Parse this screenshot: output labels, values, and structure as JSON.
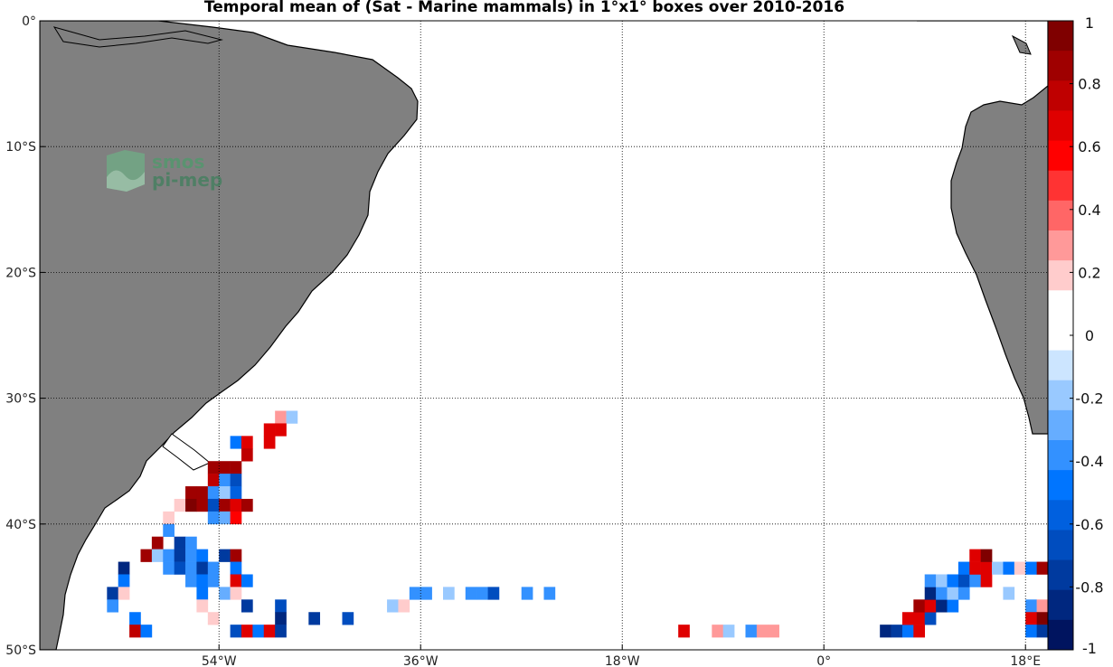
{
  "title": "Temporal mean of (Sat - Marine mammals) in 1°x1° boxes over 2010-2016",
  "logo": {
    "line1": "smos",
    "line2": "pi-mep"
  },
  "colors": {
    "land": "#808080",
    "coast": "#000000",
    "frame": "#000000",
    "grid": "#000000"
  },
  "chart_data": {
    "type": "heatmap",
    "projection": "equirectangular",
    "lon_range": [
      -70,
      20
    ],
    "lat_range": [
      -50,
      0
    ],
    "x_ticks": [
      {
        "lon": -54,
        "label": "54°W"
      },
      {
        "lon": -36,
        "label": "36°W"
      },
      {
        "lon": -18,
        "label": "18°W"
      },
      {
        "lon": 0,
        "label": "0°"
      },
      {
        "lon": 18,
        "label": "18°E"
      }
    ],
    "y_ticks": [
      {
        "lat": 0,
        "label": "0°"
      },
      {
        "lat": -10,
        "label": "10°S"
      },
      {
        "lat": -20,
        "label": "20°S"
      },
      {
        "lat": -30,
        "label": "30°S"
      },
      {
        "lat": -40,
        "label": "40°S"
      },
      {
        "lat": -50,
        "label": "50°S"
      }
    ],
    "colorbar": {
      "range": [
        -1,
        1
      ],
      "ticks": [
        "1",
        "0.8",
        "0.6",
        "0.4",
        "0.2",
        "0",
        "-0.2",
        "-0.4",
        "-0.6",
        "-0.8",
        "-1"
      ],
      "bins_top_to_bottom": [
        "#7f0000",
        "#9f0000",
        "#bf0000",
        "#df0000",
        "#ff0000",
        "#ff3333",
        "#ff6666",
        "#ff9999",
        "#ffcccc",
        "#ffffff",
        "#ffffff",
        "#cce5ff",
        "#99c9ff",
        "#66adff",
        "#3391ff",
        "#0075ff",
        "#0060df",
        "#004dbf",
        "#003a9f",
        "#00277f",
        "#00145f"
      ]
    },
    "cells": [
      {
        "lon": -48.5,
        "lat": -31.5,
        "value": 0.3
      },
      {
        "lon": -47.5,
        "lat": -31.5,
        "value": -0.15
      },
      {
        "lon": -49.5,
        "lat": -32.5,
        "value": 0.65
      },
      {
        "lon": -48.5,
        "lat": -32.5,
        "value": 0.65
      },
      {
        "lon": -52.5,
        "lat": -33.5,
        "value": -0.5
      },
      {
        "lon": -51.5,
        "lat": -33.5,
        "value": 0.65
      },
      {
        "lon": -49.5,
        "lat": -33.5,
        "value": 0.65
      },
      {
        "lon": -51.5,
        "lat": -34.5,
        "value": 0.75
      },
      {
        "lon": -54.5,
        "lat": -35.5,
        "value": 0.85
      },
      {
        "lon": -53.5,
        "lat": -35.5,
        "value": 0.85
      },
      {
        "lon": -52.5,
        "lat": -35.5,
        "value": 0.85
      },
      {
        "lon": -54.5,
        "lat": -36.5,
        "value": 0.75
      },
      {
        "lon": -53.5,
        "lat": -36.5,
        "value": -0.35
      },
      {
        "lon": -52.5,
        "lat": -36.5,
        "value": -0.7
      },
      {
        "lon": -56.5,
        "lat": -37.5,
        "value": 0.85
      },
      {
        "lon": -55.5,
        "lat": -37.5,
        "value": 0.85
      },
      {
        "lon": -54.5,
        "lat": -37.5,
        "value": -0.35
      },
      {
        "lon": -53.5,
        "lat": -37.5,
        "value": -0.15
      },
      {
        "lon": -52.5,
        "lat": -37.5,
        "value": -0.6
      },
      {
        "lon": -57.5,
        "lat": -38.5,
        "value": 0.15
      },
      {
        "lon": -56.5,
        "lat": -38.5,
        "value": 0.95
      },
      {
        "lon": -55.5,
        "lat": -38.5,
        "value": 0.85
      },
      {
        "lon": -54.5,
        "lat": -38.5,
        "value": -0.7
      },
      {
        "lon": -53.5,
        "lat": -38.5,
        "value": 0.85
      },
      {
        "lon": -52.5,
        "lat": -38.5,
        "value": 0.65
      },
      {
        "lon": -51.5,
        "lat": -38.5,
        "value": 0.85
      },
      {
        "lon": -58.5,
        "lat": -39.5,
        "value": 0.15
      },
      {
        "lon": -54.5,
        "lat": -39.5,
        "value": -0.35
      },
      {
        "lon": -53.5,
        "lat": -39.5,
        "value": -0.25
      },
      {
        "lon": -52.5,
        "lat": -39.5,
        "value": 0.6
      },
      {
        "lon": -58.5,
        "lat": -40.5,
        "value": -0.35
      },
      {
        "lon": -59.5,
        "lat": -41.5,
        "value": 0.85
      },
      {
        "lon": -57.5,
        "lat": -41.5,
        "value": -0.8
      },
      {
        "lon": -56.5,
        "lat": -41.5,
        "value": -0.35
      },
      {
        "lon": -60.5,
        "lat": -42.5,
        "value": 0.85
      },
      {
        "lon": -59.5,
        "lat": -42.5,
        "value": -0.15
      },
      {
        "lon": -58.5,
        "lat": -42.5,
        "value": -0.35
      },
      {
        "lon": -57.5,
        "lat": -42.5,
        "value": -0.8
      },
      {
        "lon": -56.5,
        "lat": -42.5,
        "value": -0.35
      },
      {
        "lon": -55.5,
        "lat": -42.5,
        "value": -0.5
      },
      {
        "lon": -53.5,
        "lat": -42.5,
        "value": -0.8
      },
      {
        "lon": -52.5,
        "lat": -42.5,
        "value": 0.85
      },
      {
        "lon": -62.5,
        "lat": -43.5,
        "value": -0.9
      },
      {
        "lon": -58.5,
        "lat": -43.5,
        "value": -0.35
      },
      {
        "lon": -57.5,
        "lat": -43.5,
        "value": -0.7
      },
      {
        "lon": -56.5,
        "lat": -43.5,
        "value": -0.35
      },
      {
        "lon": -55.5,
        "lat": -43.5,
        "value": -0.8
      },
      {
        "lon": -54.5,
        "lat": -43.5,
        "value": -0.35
      },
      {
        "lon": -52.5,
        "lat": -43.5,
        "value": -0.5
      },
      {
        "lon": -62.5,
        "lat": -44.5,
        "value": -0.5
      },
      {
        "lon": -56.5,
        "lat": -44.5,
        "value": -0.35
      },
      {
        "lon": -55.5,
        "lat": -44.5,
        "value": -0.5
      },
      {
        "lon": -54.5,
        "lat": -44.5,
        "value": -0.35
      },
      {
        "lon": -52.5,
        "lat": -44.5,
        "value": 0.65
      },
      {
        "lon": -51.5,
        "lat": -44.5,
        "value": -0.5
      },
      {
        "lon": -63.5,
        "lat": -45.5,
        "value": -0.8
      },
      {
        "lon": -62.5,
        "lat": -45.5,
        "value": 0.15
      },
      {
        "lon": -55.5,
        "lat": -45.5,
        "value": -0.5
      },
      {
        "lon": -53.5,
        "lat": -45.5,
        "value": -0.25
      },
      {
        "lon": -52.5,
        "lat": -45.5,
        "value": 0.15
      },
      {
        "lon": -63.5,
        "lat": -46.5,
        "value": -0.35
      },
      {
        "lon": -55.5,
        "lat": -46.5,
        "value": 0.15
      },
      {
        "lon": -51.5,
        "lat": -46.5,
        "value": -0.8
      },
      {
        "lon": -48.5,
        "lat": -46.5,
        "value": -0.7
      },
      {
        "lon": -38.5,
        "lat": -46.5,
        "value": -0.15
      },
      {
        "lon": -37.5,
        "lat": -46.5,
        "value": 0.15
      },
      {
        "lon": -61.5,
        "lat": -47.5,
        "value": -0.5
      },
      {
        "lon": -54.5,
        "lat": -47.5,
        "value": 0.15
      },
      {
        "lon": -48.5,
        "lat": -47.5,
        "value": -0.9
      },
      {
        "lon": -45.5,
        "lat": -47.5,
        "value": -0.8
      },
      {
        "lon": -42.5,
        "lat": -47.5,
        "value": -0.7
      },
      {
        "lon": -61.5,
        "lat": -48.5,
        "value": 0.75
      },
      {
        "lon": -60.5,
        "lat": -48.5,
        "value": -0.5
      },
      {
        "lon": -52.5,
        "lat": -48.5,
        "value": -0.7
      },
      {
        "lon": -51.5,
        "lat": -48.5,
        "value": 0.65
      },
      {
        "lon": -50.5,
        "lat": -48.5,
        "value": -0.5
      },
      {
        "lon": -49.5,
        "lat": -48.5,
        "value": 0.65
      },
      {
        "lon": -48.5,
        "lat": -48.5,
        "value": -0.8
      },
      {
        "lon": -36.5,
        "lat": -45.5,
        "value": -0.35
      },
      {
        "lon": -35.5,
        "lat": -45.5,
        "value": -0.35
      },
      {
        "lon": -33.5,
        "lat": -45.5,
        "value": -0.15
      },
      {
        "lon": -31.5,
        "lat": -45.5,
        "value": -0.35
      },
      {
        "lon": -30.5,
        "lat": -45.5,
        "value": -0.35
      },
      {
        "lon": -29.5,
        "lat": -45.5,
        "value": -0.7
      },
      {
        "lon": -26.5,
        "lat": -45.5,
        "value": -0.35
      },
      {
        "lon": -24.5,
        "lat": -45.5,
        "value": -0.35
      },
      {
        "lon": -12.5,
        "lat": -48.5,
        "value": 0.65
      },
      {
        "lon": -9.5,
        "lat": -48.5,
        "value": 0.3
      },
      {
        "lon": -8.5,
        "lat": -48.5,
        "value": -0.15
      },
      {
        "lon": -6.5,
        "lat": -48.5,
        "value": -0.35
      },
      {
        "lon": -5.5,
        "lat": -48.5,
        "value": 0.3
      },
      {
        "lon": -4.5,
        "lat": -48.5,
        "value": 0.3
      },
      {
        "lon": 5.5,
        "lat": -48.5,
        "value": -0.9
      },
      {
        "lon": 6.5,
        "lat": -48.5,
        "value": -0.8
      },
      {
        "lon": 7.5,
        "lat": -48.5,
        "value": -0.5
      },
      {
        "lon": 8.5,
        "lat": -48.5,
        "value": 0.65
      },
      {
        "lon": 7.5,
        "lat": -47.5,
        "value": 0.65
      },
      {
        "lon": 8.5,
        "lat": -47.5,
        "value": 0.65
      },
      {
        "lon": 9.5,
        "lat": -47.5,
        "value": -0.7
      },
      {
        "lon": 8.5,
        "lat": -46.5,
        "value": 0.85
      },
      {
        "lon": 9.5,
        "lat": -46.5,
        "value": 0.65
      },
      {
        "lon": 10.5,
        "lat": -46.5,
        "value": -0.9
      },
      {
        "lon": 11.5,
        "lat": -46.5,
        "value": -0.5
      },
      {
        "lon": 9.5,
        "lat": -45.5,
        "value": -0.9
      },
      {
        "lon": 10.5,
        "lat": -45.5,
        "value": -0.35
      },
      {
        "lon": 11.5,
        "lat": -45.5,
        "value": -0.15
      },
      {
        "lon": 12.5,
        "lat": -45.5,
        "value": -0.35
      },
      {
        "lon": 9.5,
        "lat": -44.5,
        "value": -0.35
      },
      {
        "lon": 10.5,
        "lat": -44.5,
        "value": -0.15
      },
      {
        "lon": 11.5,
        "lat": -44.5,
        "value": -0.5
      },
      {
        "lon": 12.5,
        "lat": -44.5,
        "value": -0.7
      },
      {
        "lon": 13.5,
        "lat": -44.5,
        "value": -0.35
      },
      {
        "lon": 14.5,
        "lat": -44.5,
        "value": 0.65
      },
      {
        "lon": 12.5,
        "lat": -43.5,
        "value": -0.5
      },
      {
        "lon": 13.5,
        "lat": -43.5,
        "value": 0.65
      },
      {
        "lon": 14.5,
        "lat": -43.5,
        "value": 0.65
      },
      {
        "lon": 15.5,
        "lat": -43.5,
        "value": -0.15
      },
      {
        "lon": 16.5,
        "lat": -43.5,
        "value": -0.5
      },
      {
        "lon": 17.5,
        "lat": -43.5,
        "value": 0.15
      },
      {
        "lon": 18.5,
        "lat": -43.5,
        "value": -0.5
      },
      {
        "lon": 19.5,
        "lat": -43.5,
        "value": 0.85
      },
      {
        "lon": 13.5,
        "lat": -42.5,
        "value": 0.65
      },
      {
        "lon": 14.5,
        "lat": -42.5,
        "value": 0.95
      },
      {
        "lon": 16.5,
        "lat": -45.5,
        "value": -0.15
      },
      {
        "lon": 18.5,
        "lat": -46.5,
        "value": -0.35
      },
      {
        "lon": 19.5,
        "lat": -46.5,
        "value": 0.3
      },
      {
        "lon": 18.5,
        "lat": -47.5,
        "value": 0.65
      },
      {
        "lon": 19.5,
        "lat": -47.5,
        "value": 0.95
      },
      {
        "lon": 18.5,
        "lat": -48.5,
        "value": -0.5
      },
      {
        "lon": 19.5,
        "lat": -48.5,
        "value": -0.8
      }
    ]
  }
}
